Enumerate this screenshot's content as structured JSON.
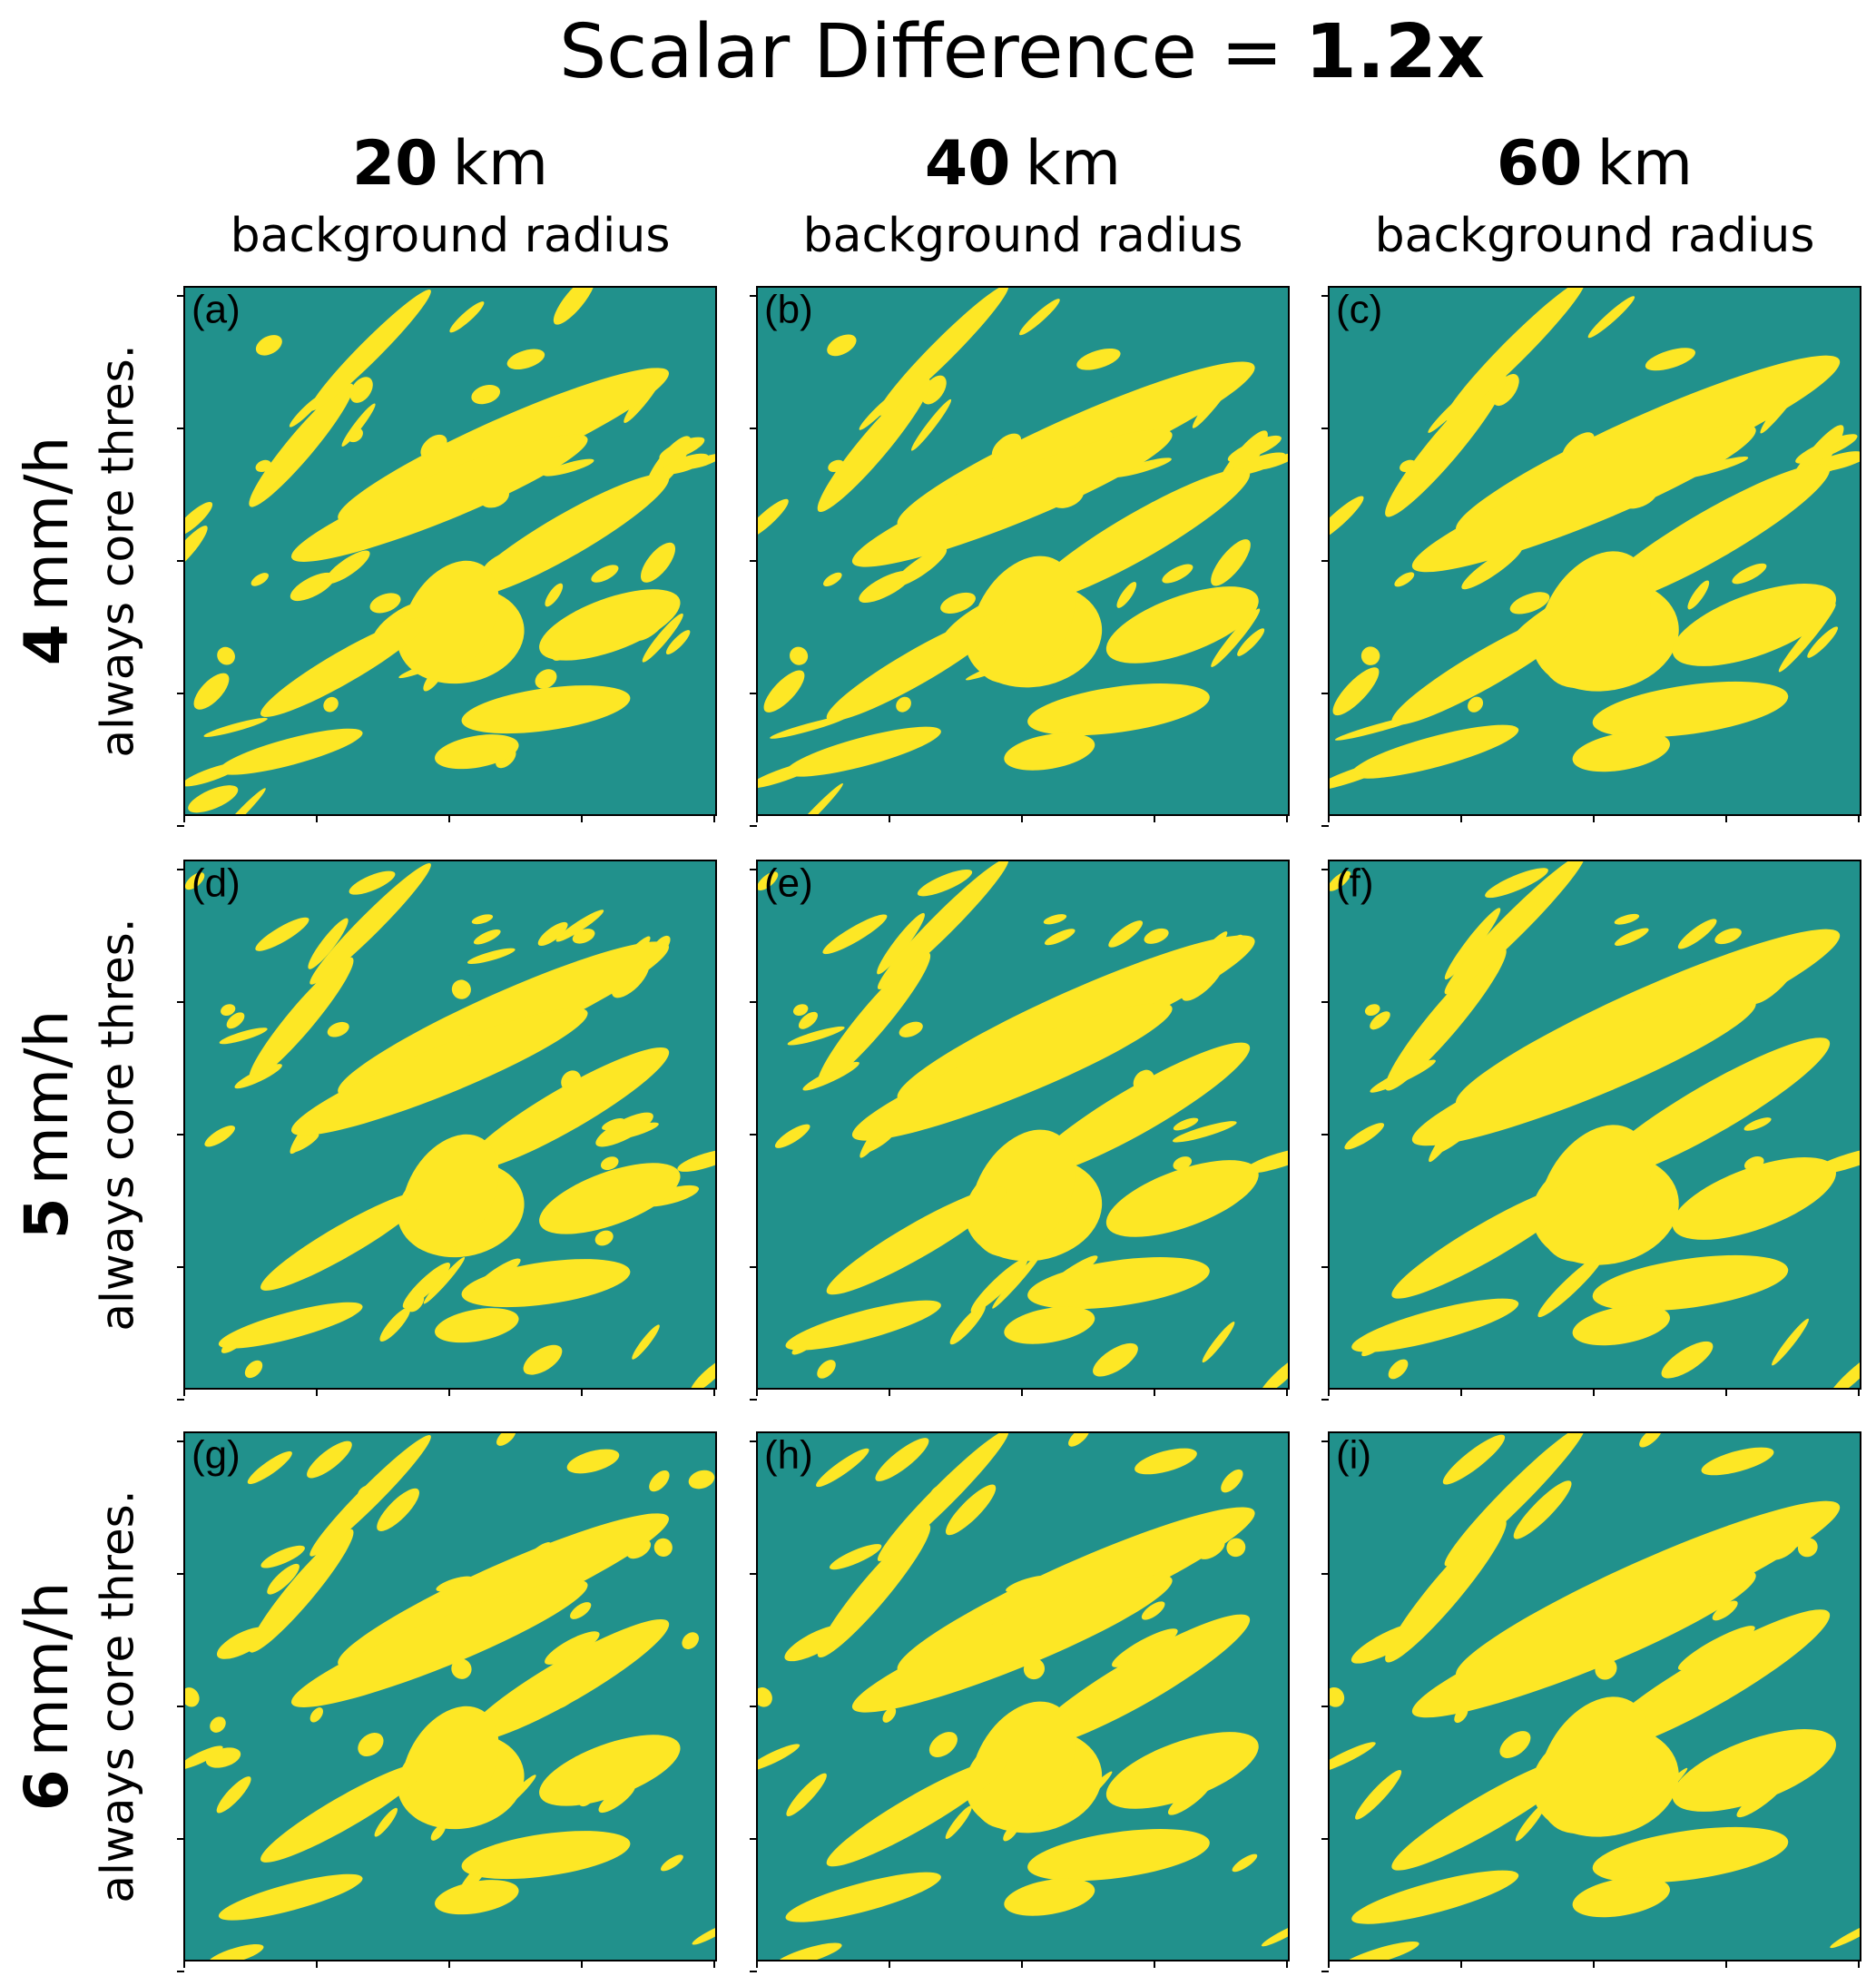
{
  "header": {
    "title": "Scalar Difference =",
    "title_bold": "1.2x"
  },
  "columns": [
    {
      "value": "20",
      "unit": "km",
      "subtitle": "background radius"
    },
    {
      "value": "40",
      "unit": "km",
      "subtitle": "background radius"
    },
    {
      "value": "60",
      "unit": "km",
      "subtitle": "background radius"
    }
  ],
  "rows": [
    {
      "value": "4",
      "unit": "mm/h",
      "subtitle": "always core thres."
    },
    {
      "value": "5",
      "unit": "mm/h",
      "subtitle": "always core thres."
    },
    {
      "value": "6",
      "unit": "mm/h",
      "subtitle": "always core thres."
    }
  ],
  "panels": [
    [
      "(a)",
      "(b)",
      "(c)"
    ],
    [
      "(d)",
      "(e)",
      "(f)"
    ],
    [
      "(g)",
      "(h)",
      "(i)"
    ]
  ]
}
